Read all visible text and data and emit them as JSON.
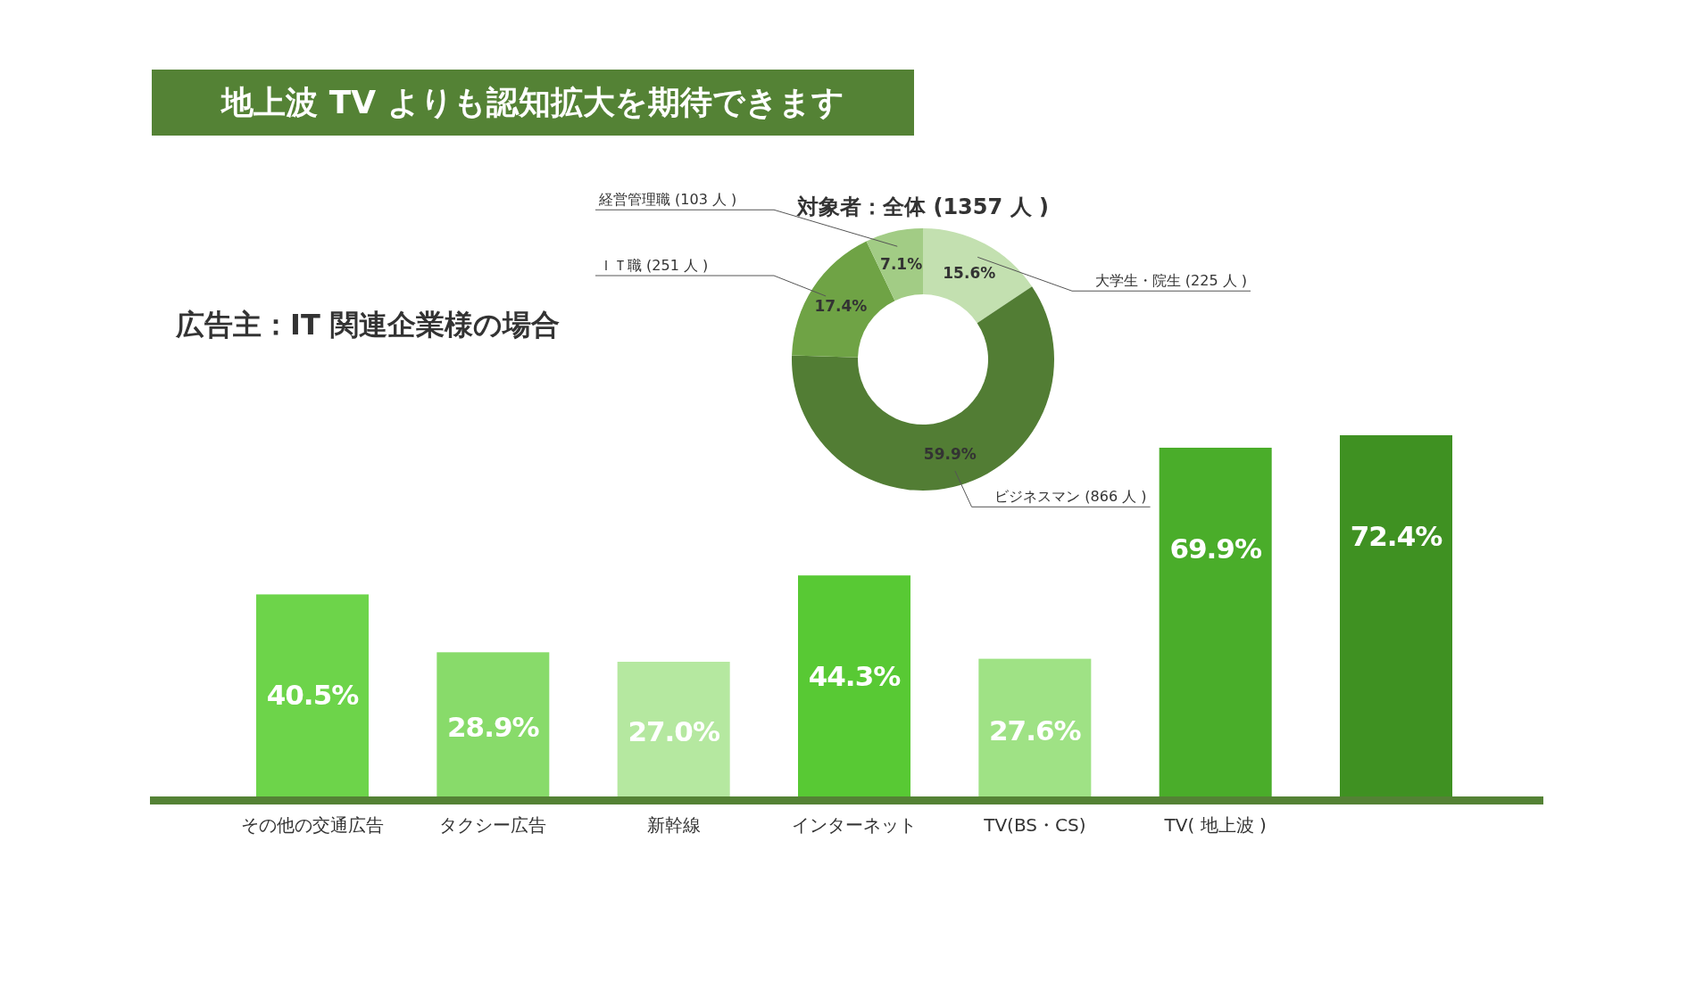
{
  "chart_data": [
    {
      "type": "bar",
      "title": "地上波 TV よりも認知拡大を期待できます",
      "subtitle": "広告主：IT 関連企業様の場合",
      "categories": [
        "その他の交通広告",
        "タクシー広告",
        "新幹線",
        "インターネット",
        "TV(BS・CS)",
        "TV( 地上波 )",
        null
      ],
      "values": [
        40.5,
        28.9,
        27.0,
        44.3,
        27.6,
        69.9,
        72.4
      ],
      "value_labels": [
        "40.5%",
        "28.9%",
        "27.0%",
        "44.3%",
        "27.6%",
        "69.9%",
        "72.4%"
      ],
      "colors": [
        "#6dd44a",
        "#88db6a",
        "#b5e8a0",
        "#58c934",
        "#9fe285",
        "#4aad2a",
        "#3f9122"
      ]
    },
    {
      "type": "donut",
      "title": "対象者：全体 (1357 人 )",
      "categories": [
        "大学生・院生 (225 人 )",
        "ビジネスマン (866 人 )",
        "ＩＴ職 (251 人 )",
        "経営管理職 (103 人 )"
      ],
      "values": [
        15.6,
        59.9,
        17.4,
        7.1
      ],
      "value_labels": [
        "15.6%",
        "59.9%",
        "17.4%",
        "7.1%"
      ],
      "colors": [
        "#c3e0b0",
        "#527d34",
        "#6fa345",
        "#a2cc85"
      ]
    }
  ]
}
